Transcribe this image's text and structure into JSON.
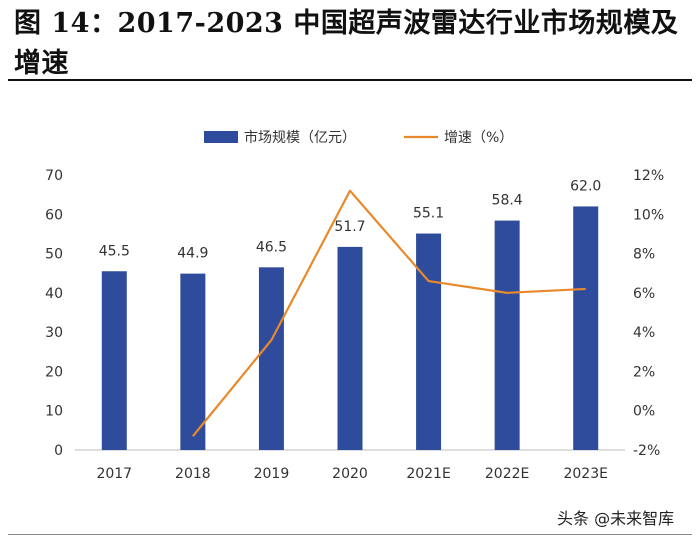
{
  "title": "图 14：2017-2023 中国超声波雷达行业市场规模及增速",
  "watermark": "头条 @未来智库",
  "colors": {
    "bar": "#2f4b9b",
    "line": "#e8892b",
    "axis": "#bdbdbd",
    "text": "#333333"
  },
  "chart_data": {
    "type": "bar+line",
    "categories": [
      "2017",
      "2018",
      "2019",
      "2020",
      "2021E",
      "2022E",
      "2023E"
    ],
    "series": [
      {
        "name": "市场规模（亿元）",
        "type": "bar",
        "axis": "left",
        "values": [
          45.5,
          44.9,
          46.5,
          51.7,
          55.1,
          58.4,
          62.0
        ],
        "labels": [
          "45.5",
          "44.9",
          "46.5",
          "51.7",
          "55.1",
          "58.4",
          "62.0"
        ]
      },
      {
        "name": "增速（%）",
        "type": "line",
        "axis": "right",
        "values": [
          null,
          -1.3,
          3.6,
          11.2,
          6.6,
          6.0,
          6.2
        ]
      }
    ],
    "y_left": {
      "ylim": [
        0,
        70
      ],
      "ticks": [
        "0",
        "10",
        "20",
        "30",
        "40",
        "50",
        "60",
        "70"
      ]
    },
    "y_right": {
      "ylim": [
        -2,
        12
      ],
      "ticks": [
        "-2%",
        "0%",
        "2%",
        "4%",
        "6%",
        "8%",
        "10%",
        "12%"
      ]
    },
    "legend": "top-center",
    "grid": false
  }
}
